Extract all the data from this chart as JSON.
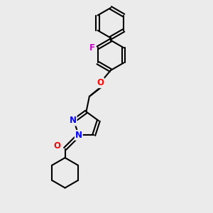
{
  "bg_color": "#ebebeb",
  "bond_color": "#000000",
  "bond_width": 1.5,
  "atom_colors": {
    "O": "#ff0000",
    "N": "#0000ff",
    "F": "#cc00cc",
    "C": "#000000"
  },
  "font_size": 8.5,
  "fig_size": [
    3.0,
    3.0
  ],
  "dpi": 100
}
